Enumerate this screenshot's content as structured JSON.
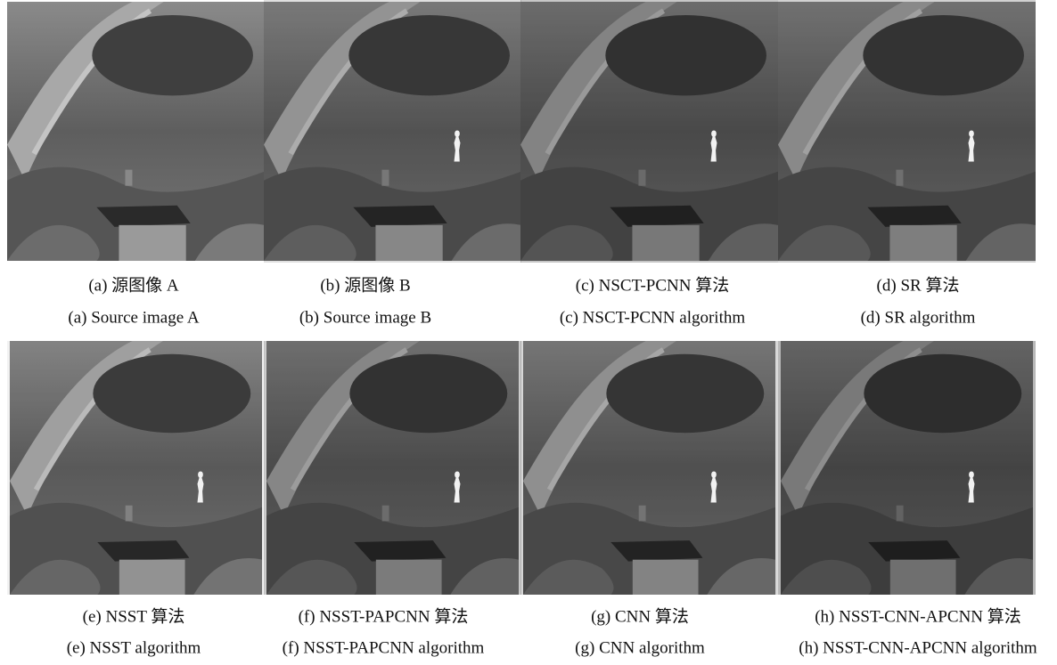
{
  "figures": [
    {
      "caption_zh": "(a)  源图像 A",
      "caption_en": "(a) Source image A"
    },
    {
      "caption_zh": "(b)  源图像 B",
      "caption_en": "(b) Source image B"
    },
    {
      "caption_zh": "(c) NSCT-PCNN 算法",
      "caption_en": "(c) NSCT-PCNN algorithm"
    },
    {
      "caption_zh": "(d) SR 算法",
      "caption_en": "(d) SR algorithm"
    },
    {
      "caption_zh": "(e) NSST 算法",
      "caption_en": "(e) NSST algorithm"
    },
    {
      "caption_zh": "(f) NSST-PAPCNN 算法",
      "caption_en": "(f) NSST-PAPCNN algorithm"
    },
    {
      "caption_zh": "(g) CNN 算法",
      "caption_en": "(g) CNN algorithm"
    },
    {
      "caption_zh": "(h) NSST-CNN-APCNN 算法",
      "caption_en": "(h) NSST-CNN-APCNN algorithm"
    }
  ]
}
